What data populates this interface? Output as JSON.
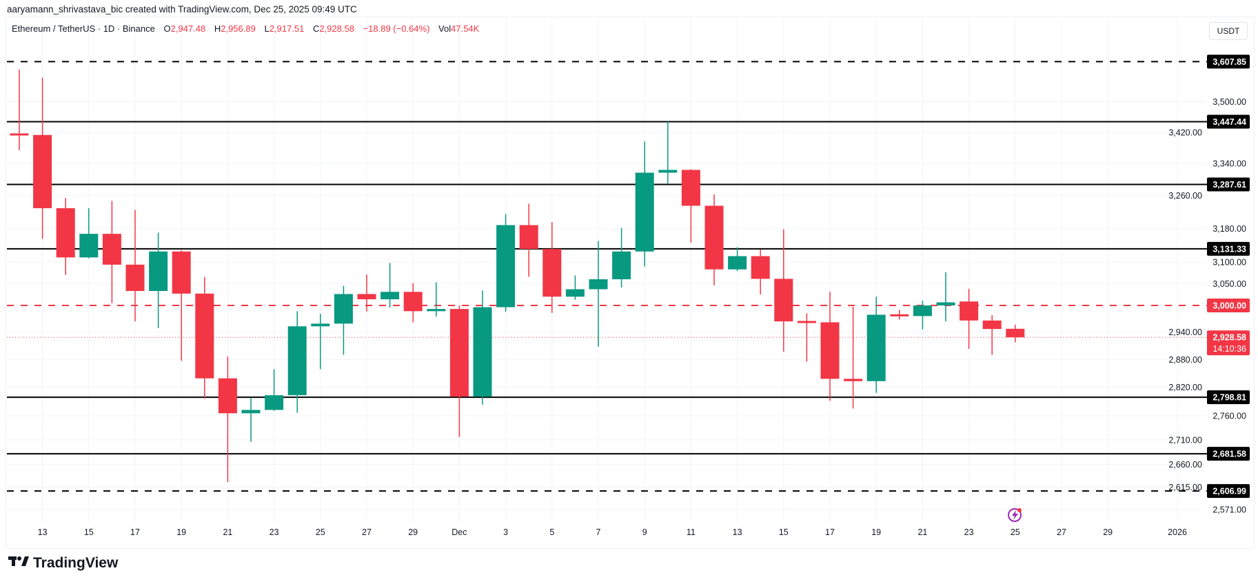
{
  "credit": "aaryamann_shrivastava_bic created with TradingView.com, Dec 25, 2025 09:49 UTC",
  "legend": {
    "symbol": "Ethereum / TetherUS · 1D · Binance",
    "o_label": "O",
    "o_value": "2,947.48",
    "h_label": "H",
    "h_value": "2,956.89",
    "l_label": "L",
    "l_value": "2,917.51",
    "c_label": "C",
    "c_value": "2,928.58",
    "change": "−18.89 (−0.64%)",
    "vol_label": "Vol",
    "vol_value": "47.54K"
  },
  "currency_button": "USDT",
  "brand": "TradingView",
  "colors": {
    "up": "#089981",
    "down": "#f23645",
    "level": "#000000",
    "grid": "#f0f3fa",
    "alert_icon": "#9c27b0"
  },
  "icons": {
    "alert": "lightning-alert-icon",
    "logo": "tradingview-logo-icon"
  },
  "chart_data": {
    "type": "candlestick",
    "title": "",
    "scale": "log",
    "grid": true,
    "ylim": [
      2540,
      3660
    ],
    "y_ticks": [
      "3,500.00",
      "3,420.00",
      "3,340.00",
      "3,260.00",
      "3,180.00",
      "3,100.00",
      "3,050.00",
      "2,940.00",
      "2,880.00",
      "2,820.00",
      "2,760.00",
      "2,710.00",
      "2,660.00",
      "2,615.00",
      "2,571.00"
    ],
    "x_ticks": [
      {
        "label": "13",
        "date": "2025-11-13"
      },
      {
        "label": "15",
        "date": "2025-11-15"
      },
      {
        "label": "17",
        "date": "2025-11-17"
      },
      {
        "label": "19",
        "date": "2025-11-19"
      },
      {
        "label": "21",
        "date": "2025-11-21"
      },
      {
        "label": "23",
        "date": "2025-11-23"
      },
      {
        "label": "25",
        "date": "2025-11-25"
      },
      {
        "label": "27",
        "date": "2025-11-27"
      },
      {
        "label": "29",
        "date": "2025-11-29"
      },
      {
        "label": "Dec",
        "date": "2025-12-01"
      },
      {
        "label": "3",
        "date": "2025-12-03"
      },
      {
        "label": "5",
        "date": "2025-12-05"
      },
      {
        "label": "7",
        "date": "2025-12-07"
      },
      {
        "label": "9",
        "date": "2025-12-09"
      },
      {
        "label": "11",
        "date": "2025-12-11"
      },
      {
        "label": "13",
        "date": "2025-12-13"
      },
      {
        "label": "15",
        "date": "2025-12-15"
      },
      {
        "label": "17",
        "date": "2025-12-17"
      },
      {
        "label": "19",
        "date": "2025-12-19"
      },
      {
        "label": "21",
        "date": "2025-12-21"
      },
      {
        "label": "23",
        "date": "2025-12-23"
      },
      {
        "label": "25",
        "date": "2025-12-25"
      },
      {
        "label": "27",
        "date": "2025-12-27"
      },
      {
        "label": "29",
        "date": "2025-12-29"
      },
      {
        "label": "2026",
        "date": "2026-01-01"
      }
    ],
    "levels": [
      {
        "price": 3607.85,
        "label": "3,607.85",
        "style": "dashed",
        "color": "#000000"
      },
      {
        "price": 3447.44,
        "label": "3,447.44",
        "style": "solid",
        "color": "#000000"
      },
      {
        "price": 3287.61,
        "label": "3,287.61",
        "style": "solid",
        "color": "#000000"
      },
      {
        "price": 3131.33,
        "label": "3,131.33",
        "style": "solid",
        "color": "#000000"
      },
      {
        "price": 3000.0,
        "label": "3,000.00",
        "style": "dashed",
        "color": "#f23645"
      },
      {
        "price": 2798.81,
        "label": "2,798.81",
        "style": "solid",
        "color": "#000000"
      },
      {
        "price": 2681.58,
        "label": "2,681.58",
        "style": "solid",
        "color": "#000000"
      },
      {
        "price": 2606.99,
        "label": "2,606.99",
        "style": "dashed",
        "color": "#000000"
      }
    ],
    "last_price": {
      "price": 2928.58,
      "label": "2,928.58",
      "countdown": "14:10:36"
    },
    "candles": [
      {
        "date": "2025-11-12",
        "o": 3417,
        "h": 3586,
        "l": 3374,
        "c": 3413
      },
      {
        "date": "2025-11-13",
        "o": 3413,
        "h": 3564,
        "l": 3155,
        "c": 3229
      },
      {
        "date": "2025-11-14",
        "o": 3229,
        "h": 3254,
        "l": 3070,
        "c": 3111
      },
      {
        "date": "2025-11-15",
        "o": 3111,
        "h": 3229,
        "l": 3109,
        "c": 3167
      },
      {
        "date": "2025-11-16",
        "o": 3167,
        "h": 3247,
        "l": 3005,
        "c": 3094
      },
      {
        "date": "2025-11-17",
        "o": 3094,
        "h": 3225,
        "l": 2964,
        "c": 3033
      },
      {
        "date": "2025-11-18",
        "o": 3033,
        "h": 3170,
        "l": 2949,
        "c": 3125
      },
      {
        "date": "2025-11-19",
        "o": 3125,
        "h": 3128,
        "l": 2877,
        "c": 3027
      },
      {
        "date": "2025-11-20",
        "o": 3027,
        "h": 3065,
        "l": 2796,
        "c": 2839
      },
      {
        "date": "2025-11-21",
        "o": 2839,
        "h": 2886,
        "l": 2625,
        "c": 2765
      },
      {
        "date": "2025-11-22",
        "o": 2765,
        "h": 2798,
        "l": 2706,
        "c": 2772
      },
      {
        "date": "2025-11-23",
        "o": 2772,
        "h": 2859,
        "l": 2770,
        "c": 2803
      },
      {
        "date": "2025-11-24",
        "o": 2803,
        "h": 2987,
        "l": 2766,
        "c": 2953
      },
      {
        "date": "2025-11-25",
        "o": 2953,
        "h": 2981,
        "l": 2859,
        "c": 2959
      },
      {
        "date": "2025-11-26",
        "o": 2959,
        "h": 3045,
        "l": 2890,
        "c": 3026
      },
      {
        "date": "2025-11-27",
        "o": 3026,
        "h": 3071,
        "l": 2986,
        "c": 3014
      },
      {
        "date": "2025-11-28",
        "o": 3014,
        "h": 3098,
        "l": 2995,
        "c": 3031
      },
      {
        "date": "2025-11-29",
        "o": 3031,
        "h": 3051,
        "l": 2962,
        "c": 2987
      },
      {
        "date": "2025-11-30",
        "o": 2987,
        "h": 3053,
        "l": 2975,
        "c": 2992
      },
      {
        "date": "2025-12-01",
        "o": 2992,
        "h": 3000,
        "l": 2716,
        "c": 2800
      },
      {
        "date": "2025-12-02",
        "o": 2800,
        "h": 3034,
        "l": 2783,
        "c": 2996
      },
      {
        "date": "2025-12-03",
        "o": 2996,
        "h": 3215,
        "l": 2986,
        "c": 3188
      },
      {
        "date": "2025-12-04",
        "o": 3188,
        "h": 3240,
        "l": 3066,
        "c": 3131
      },
      {
        "date": "2025-12-05",
        "o": 3131,
        "h": 3195,
        "l": 2983,
        "c": 3020
      },
      {
        "date": "2025-12-06",
        "o": 3020,
        "h": 3069,
        "l": 3013,
        "c": 3037
      },
      {
        "date": "2025-12-07",
        "o": 3037,
        "h": 3150,
        "l": 2908,
        "c": 3060
      },
      {
        "date": "2025-12-08",
        "o": 3060,
        "h": 3181,
        "l": 3041,
        "c": 3125
      },
      {
        "date": "2025-12-09",
        "o": 3125,
        "h": 3396,
        "l": 3090,
        "c": 3317
      },
      {
        "date": "2025-12-10",
        "o": 3317,
        "h": 3448,
        "l": 3290,
        "c": 3324
      },
      {
        "date": "2025-12-11",
        "o": 3324,
        "h": 3326,
        "l": 3146,
        "c": 3235
      },
      {
        "date": "2025-12-12",
        "o": 3235,
        "h": 3263,
        "l": 3046,
        "c": 3083
      },
      {
        "date": "2025-12-13",
        "o": 3083,
        "h": 3135,
        "l": 3079,
        "c": 3114
      },
      {
        "date": "2025-12-14",
        "o": 3114,
        "h": 3130,
        "l": 3025,
        "c": 3061
      },
      {
        "date": "2025-12-15",
        "o": 3061,
        "h": 3178,
        "l": 2897,
        "c": 2964
      },
      {
        "date": "2025-12-16",
        "o": 2965,
        "h": 2982,
        "l": 2875,
        "c": 2961
      },
      {
        "date": "2025-12-17",
        "o": 2962,
        "h": 3031,
        "l": 2791,
        "c": 2838
      },
      {
        "date": "2025-12-18",
        "o": 2838,
        "h": 2997,
        "l": 2775,
        "c": 2833
      },
      {
        "date": "2025-12-19",
        "o": 2833,
        "h": 3020,
        "l": 2808,
        "c": 2979
      },
      {
        "date": "2025-12-20",
        "o": 2980,
        "h": 2990,
        "l": 2968,
        "c": 2976
      },
      {
        "date": "2025-12-21",
        "o": 2976,
        "h": 3011,
        "l": 2946,
        "c": 3000
      },
      {
        "date": "2025-12-22",
        "o": 3000,
        "h": 3076,
        "l": 2964,
        "c": 3007
      },
      {
        "date": "2025-12-23",
        "o": 3009,
        "h": 3038,
        "l": 2903,
        "c": 2966
      },
      {
        "date": "2025-12-24",
        "o": 2966,
        "h": 2978,
        "l": 2890,
        "c": 2947
      },
      {
        "date": "2025-12-25",
        "o": 2947.48,
        "h": 2956.89,
        "l": 2917.51,
        "c": 2928.58
      }
    ]
  }
}
